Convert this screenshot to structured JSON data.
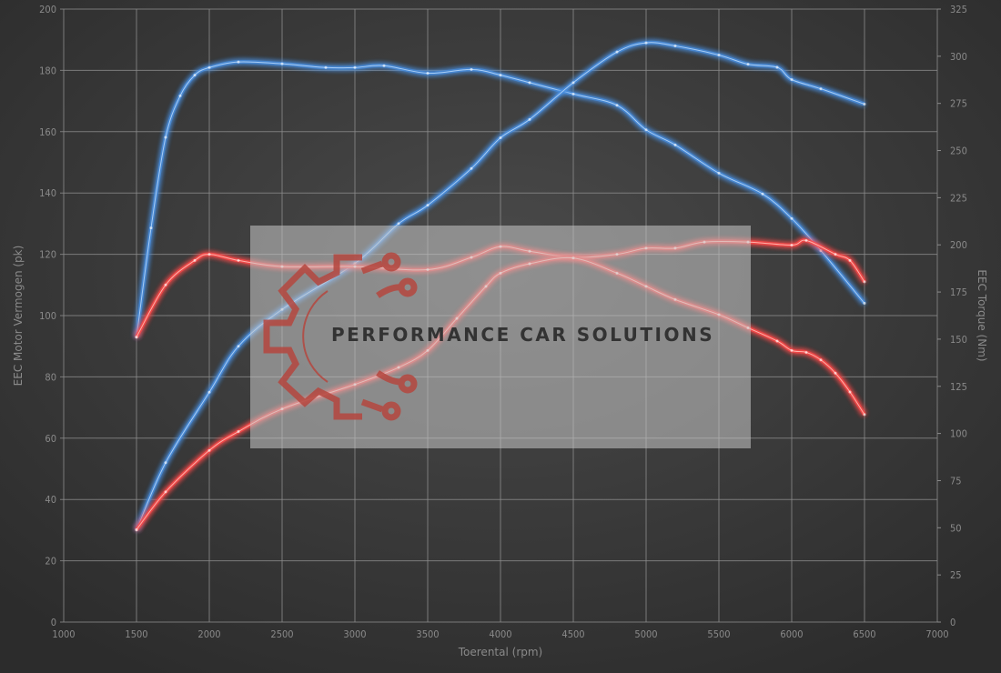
{
  "chart_data": {
    "type": "line",
    "title": "",
    "xlabel": "Toerental (rpm)",
    "ylabel_left": "EEC Motor Vermogen (pk)",
    "ylabel_right": "EEC Torque (Nm)",
    "xlim": [
      1000,
      7000
    ],
    "ylim_left": [
      0,
      200
    ],
    "ylim_right": [
      0,
      325
    ],
    "x_ticks": [
      1000,
      1500,
      2000,
      2500,
      3000,
      3500,
      4000,
      4500,
      5000,
      5500,
      6000,
      6500,
      7000
    ],
    "y_left_ticks": [
      0,
      20,
      40,
      60,
      80,
      100,
      120,
      140,
      160,
      180,
      200
    ],
    "y_right_ticks": [
      0,
      25,
      50,
      75,
      100,
      125,
      150,
      175,
      200,
      225,
      250,
      275,
      300,
      325
    ],
    "grid": true,
    "legend": "none",
    "watermark": "PERFORMANCE CAR SOLUTIONS",
    "colors": {
      "blue": "#4a8fe0",
      "red": "#ff4a4a",
      "background": "#3c3c3c",
      "grid": "#8c8c8c"
    },
    "series": [
      {
        "color": "blue",
        "axis": "right",
        "unit": "Nm",
        "x": [
          1500,
          1600,
          1700,
          1800,
          1900,
          2000,
          2200,
          2500,
          2800,
          3000,
          3200,
          3500,
          3800,
          4000,
          4200,
          4500,
          4800,
          5000,
          5200,
          5500,
          5800,
          6000,
          6200,
          6500
        ],
        "y": [
          151,
          209,
          257,
          279,
          290,
          294,
          297,
          296,
          294,
          294,
          295,
          291,
          293,
          290,
          286,
          280,
          274,
          261,
          253,
          238,
          227,
          214,
          197,
          169
        ]
      },
      {
        "color": "blue",
        "axis": "left",
        "unit": "pk",
        "x": [
          1500,
          1700,
          2000,
          2200,
          2500,
          3000,
          3300,
          3500,
          3800,
          4000,
          4200,
          4500,
          4800,
          5000,
          5200,
          5500,
          5700,
          5900,
          6000,
          6200,
          6500
        ],
        "y": [
          30,
          52,
          75,
          90,
          102,
          117,
          130,
          136,
          148,
          158,
          164,
          176,
          186,
          189,
          188,
          185,
          182,
          181,
          177,
          174,
          169
        ]
      },
      {
        "color": "red",
        "axis": "left",
        "unit": "pk",
        "x": [
          1500,
          1700,
          1900,
          2000,
          2200,
          2500,
          3000,
          3500,
          3800,
          4000,
          4200,
          4500,
          4800,
          5000,
          5200,
          5400,
          5700,
          6000,
          6100,
          6300,
          6400,
          6500
        ],
        "y": [
          93,
          110,
          118,
          120,
          118,
          116,
          116,
          115,
          119,
          122.5,
          121,
          119,
          120,
          122,
          122,
          124,
          124,
          123,
          124.5,
          120,
          118,
          111
        ]
      },
      {
        "color": "red",
        "axis": "right",
        "unit": "Nm",
        "x": [
          1500,
          1700,
          2000,
          2200,
          2500,
          3000,
          3300,
          3500,
          3700,
          3900,
          4000,
          4200,
          4500,
          4800,
          5000,
          5200,
          5500,
          5700,
          5900,
          6000,
          6100,
          6200,
          6300,
          6400,
          6500
        ],
        "y": [
          49,
          69,
          91,
          101,
          113,
          126,
          135,
          144,
          161,
          178,
          185,
          190,
          193,
          185,
          178,
          171,
          163,
          156,
          149,
          144,
          143,
          139,
          132,
          122,
          110
        ]
      }
    ]
  }
}
